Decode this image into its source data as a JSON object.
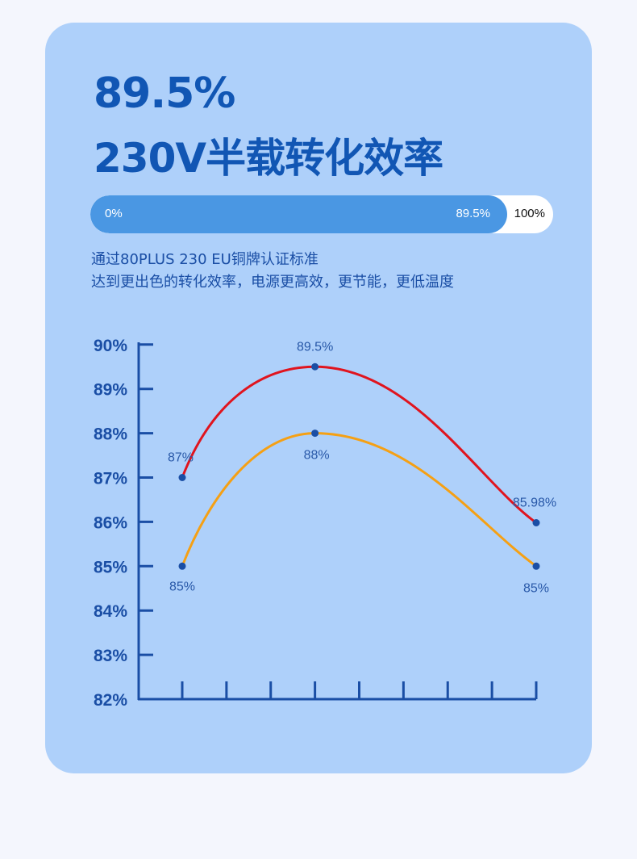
{
  "headline": {
    "value": "89.5%",
    "title": "230V半载转化效率"
  },
  "progress": {
    "start_label": "0%",
    "value_label": "89.5%",
    "end_label": "100%",
    "value_fraction": 0.895,
    "fill_color": "#4a97e3",
    "track_color": "#ffffff"
  },
  "description": {
    "line1": "通过80PLUS 230 EU铜牌认证标准",
    "line2": "达到更出色的转化效率，电源更高效，更节能，更低温度"
  },
  "colors": {
    "card_background": "#aed0fa",
    "page_background": "#f4f6fd",
    "accent": "#1156b4"
  },
  "chart_data": {
    "type": "line",
    "y_tick_labels": [
      "82%",
      "83%",
      "84%",
      "85%",
      "86%",
      "87%",
      "88%",
      "89%",
      "90%"
    ],
    "ylim": [
      82,
      90
    ],
    "x_tick_count": 8,
    "grid": false,
    "legend": "none",
    "series": [
      {
        "color": "#e0141e",
        "points": [
          {
            "x": 1,
            "y": 87,
            "label": "87%"
          },
          {
            "x": 4,
            "y": 89.5,
            "label": "89.5%"
          },
          {
            "x": 9,
            "y": 85.98,
            "label": "85.98%"
          }
        ]
      },
      {
        "color": "#f5a014",
        "points": [
          {
            "x": 1,
            "y": 85,
            "label": "85%"
          },
          {
            "x": 4,
            "y": 88,
            "label": "88%"
          },
          {
            "x": 9,
            "y": 85,
            "label": "85%"
          }
        ]
      }
    ],
    "marker_color": "#1a4ea5",
    "axis_color": "#1a4ea5"
  }
}
